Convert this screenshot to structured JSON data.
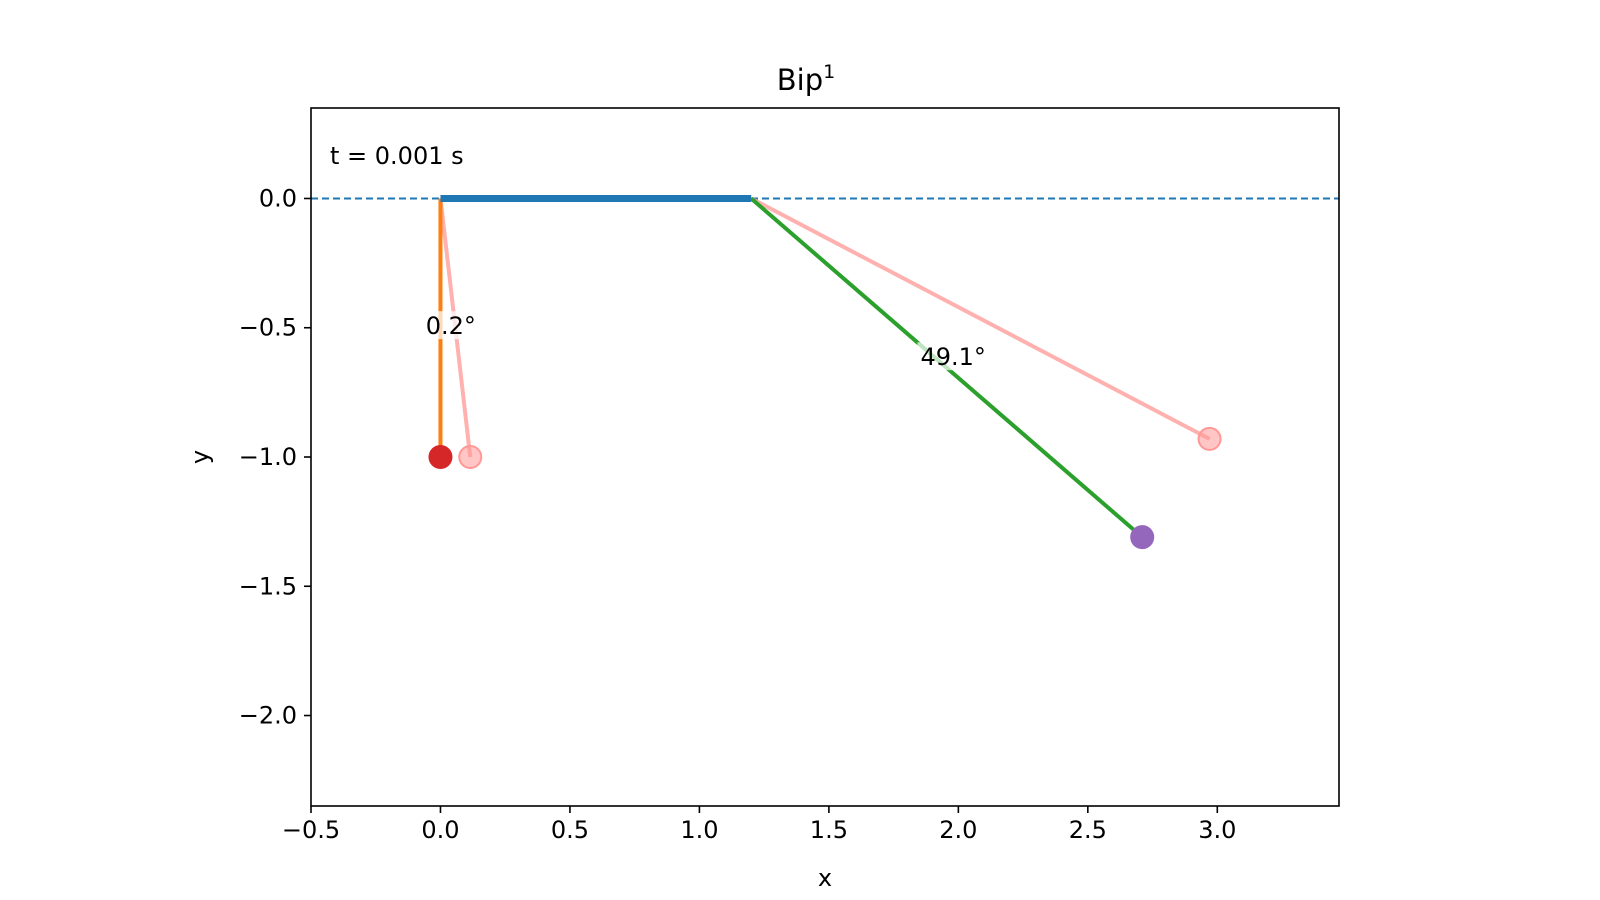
{
  "chart_data": {
    "type": "line",
    "title": "Bip",
    "title_superscript": "1",
    "xlabel": "x",
    "ylabel": "y",
    "xlim": [
      -0.5,
      3.47
    ],
    "ylim": [
      -2.35,
      0.35
    ],
    "xticks": [
      -0.5,
      0.0,
      0.5,
      1.0,
      1.5,
      2.0,
      2.5,
      3.0
    ],
    "xtick_labels": [
      "−0.5",
      "0.0",
      "0.5",
      "1.0",
      "1.5",
      "2.0",
      "2.5",
      "3.0"
    ],
    "yticks": [
      0.0,
      -0.5,
      -1.0,
      -1.5,
      -2.0
    ],
    "ytick_labels": [
      "0.0",
      "−0.5",
      "−1.0",
      "−1.5",
      "−2.0"
    ],
    "grid": false,
    "legend": false,
    "time_label": "t = 0.001 s",
    "reference_line": {
      "y": 0.0,
      "style": "dashed",
      "color": "#1f77b4"
    },
    "beam": {
      "x": [
        0.0,
        1.2
      ],
      "y": [
        0.0,
        0.0
      ],
      "color": "#1f77b4"
    },
    "pendulums": [
      {
        "pivot": [
          0.0,
          0.0
        ],
        "bob": [
          0.0,
          -1.0
        ],
        "ghost_bob": [
          0.115,
          -1.0
        ],
        "rod_color": "#ff7f0e",
        "bob_color": "#d62728",
        "ghost_color": "#ff9896",
        "angle_label": "0.2°",
        "angle_label_pos": [
          0.04,
          -0.49
        ]
      },
      {
        "pivot": [
          1.2,
          0.0
        ],
        "bob": [
          2.71,
          -1.31
        ],
        "ghost_bob": [
          2.97,
          -0.93
        ],
        "rod_color": "#2ca02c",
        "bob_color": "#9467bd",
        "ghost_color": "#ff9896",
        "angle_label": "49.1°",
        "angle_label_pos": [
          1.98,
          -0.61
        ]
      }
    ]
  }
}
